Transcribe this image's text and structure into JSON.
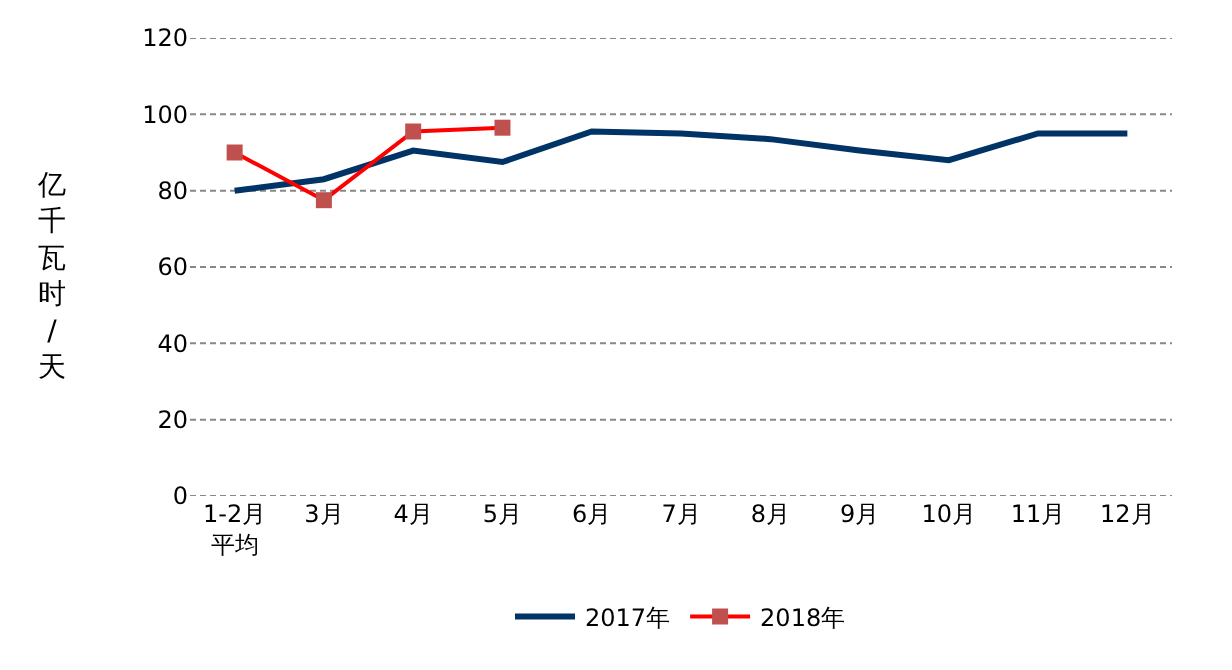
{
  "chart_data": {
    "type": "line",
    "ylabel": "亿千瓦时/天",
    "categories": [
      "1-2月平均",
      "3月",
      "4月",
      "5月",
      "6月",
      "7月",
      "8月",
      "9月",
      "10月",
      "11月",
      "12月"
    ],
    "series": [
      {
        "name": "2017年",
        "color": "#003366",
        "values": [
          80,
          83,
          90.5,
          87.5,
          95.5,
          95,
          93.5,
          90.5,
          88,
          95,
          95
        ],
        "marker": "none"
      },
      {
        "name": "2018年",
        "color": "#ff0000",
        "values": [
          90,
          77.5,
          95.5,
          96.5,
          null,
          null,
          null,
          null,
          null,
          null,
          null
        ],
        "marker": "square"
      }
    ],
    "ylim": [
      0,
      120
    ],
    "yticks": [
      0,
      20,
      40,
      60,
      80,
      100,
      120
    ],
    "grid": "y",
    "legend": "bottom",
    "line_style": "solid"
  }
}
